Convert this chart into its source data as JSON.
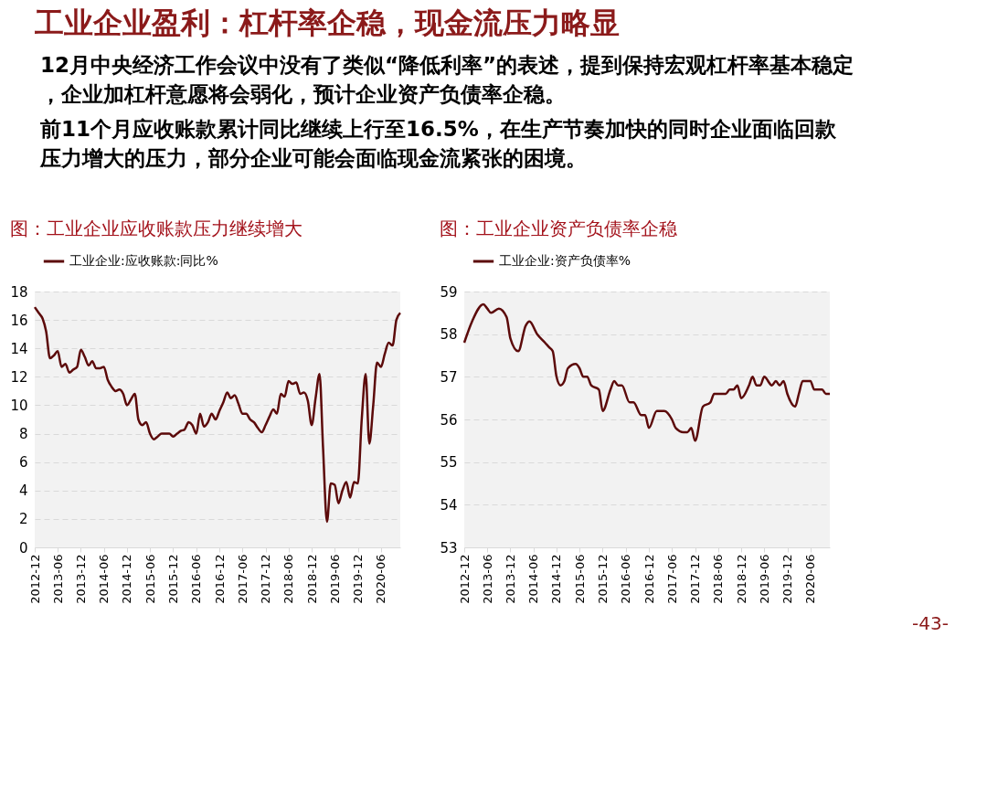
{
  "chart_data": [
    {
      "type": "other",
      "title": "工业企业盈利：杠杆率企稳，现金流压力略显",
      "annotations": [
        "12月中央经济工作会议中没有了类似“降低利率”的表述，提到保持宏观杠杆率基本稳定，企业加杠杆意愿将会弱化，预计企业资产负债率企稳。",
        "前11个月应收账款累计同比继续上行至16.5%，在生产节奏加快的同时企业面临回款压力增大的压力，部分企业可能会面临现金流紧张的困境。",
        "-43-"
      ]
    },
    {
      "type": "line",
      "title": "图：工业企业应收账款压力继续增大",
      "legend": "top",
      "grid": "y",
      "line_style": "solid",
      "xlim": [
        "2012-12",
        "2020-11"
      ],
      "ylim": [
        0,
        18
      ],
      "yticks": [
        0,
        2,
        4,
        6,
        8,
        10,
        12,
        14,
        16,
        18
      ],
      "xticks": [
        "2012-12",
        "2013-06",
        "2013-12",
        "2014-06",
        "2014-12",
        "2015-06",
        "2015-12",
        "2016-06",
        "2016-12",
        "2017-06",
        "2017-12",
        "2018-06",
        "2018-12",
        "2019-06",
        "2019-12",
        "2020-06"
      ],
      "series": [
        {
          "name": "工业企业:应收账款:同比%",
          "color": "#5c0a0a",
          "x": [
            "2012-12",
            "2013-01",
            "2013-02",
            "2013-03",
            "2013-04",
            "2013-05",
            "2013-06",
            "2013-07",
            "2013-08",
            "2013-09",
            "2013-10",
            "2013-11",
            "2013-12",
            "2014-01",
            "2014-02",
            "2014-03",
            "2014-04",
            "2014-05",
            "2014-06",
            "2014-07",
            "2014-08",
            "2014-09",
            "2014-10",
            "2014-11",
            "2014-12",
            "2015-01",
            "2015-02",
            "2015-03",
            "2015-04",
            "2015-05",
            "2015-06",
            "2015-07",
            "2015-08",
            "2015-09",
            "2015-10",
            "2015-11",
            "2015-12",
            "2016-01",
            "2016-02",
            "2016-03",
            "2016-04",
            "2016-05",
            "2016-06",
            "2016-07",
            "2016-08",
            "2016-09",
            "2016-10",
            "2016-11",
            "2016-12",
            "2017-01",
            "2017-02",
            "2017-03",
            "2017-04",
            "2017-05",
            "2017-06",
            "2017-07",
            "2017-08",
            "2017-09",
            "2017-10",
            "2017-11",
            "2017-12",
            "2018-01",
            "2018-02",
            "2018-03",
            "2018-04",
            "2018-05",
            "2018-06",
            "2018-07",
            "2018-08",
            "2018-09",
            "2018-10",
            "2018-11",
            "2018-12",
            "2019-01",
            "2019-02",
            "2019-03",
            "2019-04",
            "2019-05",
            "2019-06",
            "2019-07",
            "2019-08",
            "2019-09",
            "2019-10",
            "2019-11",
            "2019-12",
            "2020-01",
            "2020-02",
            "2020-03",
            "2020-04",
            "2020-05",
            "2020-06",
            "2020-07",
            "2020-08",
            "2020-09",
            "2020-10",
            "2020-11"
          ],
          "values": [
            16.9,
            16.5,
            16.1,
            15.2,
            13.3,
            13.5,
            13.8,
            12.7,
            12.9,
            12.3,
            12.5,
            12.7,
            13.9,
            13.4,
            12.8,
            13.1,
            12.6,
            12.6,
            12.7,
            11.8,
            11.3,
            11.0,
            11.1,
            10.8,
            10.0,
            10.4,
            10.8,
            9.0,
            8.6,
            8.8,
            8.0,
            7.6,
            7.8,
            8.0,
            8.0,
            8.0,
            7.8,
            8.0,
            8.2,
            8.3,
            8.8,
            8.6,
            8.0,
            9.4,
            8.5,
            8.8,
            9.4,
            9.0,
            9.6,
            10.2,
            10.9,
            10.5,
            10.7,
            10.1,
            9.4,
            9.4,
            9.0,
            8.8,
            8.4,
            8.1,
            8.6,
            9.2,
            9.7,
            9.4,
            10.8,
            10.6,
            11.7,
            11.5,
            11.6,
            10.8,
            10.9,
            10.3,
            8.6,
            10.5,
            12.2,
            7.0,
            1.8,
            4.5,
            4.4,
            3.1,
            4.0,
            4.6,
            3.5,
            4.6,
            4.5,
            9.0,
            12.2,
            7.3,
            10.0,
            13.0,
            12.7,
            13.6,
            14.4,
            14.2,
            16.0,
            16.5
          ]
        }
      ]
    },
    {
      "type": "line",
      "title": "图：工业企业资产负债率企稳",
      "legend": "top",
      "grid": "y",
      "line_style": "solid",
      "xlim": [
        "2012-12",
        "2020-11"
      ],
      "ylim": [
        53,
        59
      ],
      "yticks": [
        53,
        54,
        55,
        56,
        57,
        58,
        59
      ],
      "xticks": [
        "2012-12",
        "2013-06",
        "2013-12",
        "2014-06",
        "2014-12",
        "2015-06",
        "2015-12",
        "2016-06",
        "2016-12",
        "2017-06",
        "2017-12",
        "2018-06",
        "2018-12",
        "2019-06",
        "2019-12",
        "2020-06"
      ],
      "series": [
        {
          "name": "工业企业:资产负债率%",
          "color": "#5c0a0a",
          "x": [
            "2012-12",
            "2013-02",
            "2013-05",
            "2013-06",
            "2013-07",
            "2013-09",
            "2013-11",
            "2013-12",
            "2014-02",
            "2014-04",
            "2014-05",
            "2014-07",
            "2014-09",
            "2014-10",
            "2014-11",
            "2014-12",
            "2015-01",
            "2015-02",
            "2015-03",
            "2015-05",
            "2015-06",
            "2015-07",
            "2015-08",
            "2015-09",
            "2015-11",
            "2015-12",
            "2016-02",
            "2016-03",
            "2016-04",
            "2016-05",
            "2016-07",
            "2016-08",
            "2016-10",
            "2016-11",
            "2016-12",
            "2017-02",
            "2017-04",
            "2017-06",
            "2017-07",
            "2017-09",
            "2017-10",
            "2017-11",
            "2017-12",
            "2018-02",
            "2018-04",
            "2018-05",
            "2018-08",
            "2018-09",
            "2018-10",
            "2018-11",
            "2018-12",
            "2019-02",
            "2019-03",
            "2019-04",
            "2019-05",
            "2019-06",
            "2019-08",
            "2019-09",
            "2019-10",
            "2019-11",
            "2019-12",
            "2020-02",
            "2020-03",
            "2020-04",
            "2020-06",
            "2020-07",
            "2020-09",
            "2020-10",
            "2020-11"
          ],
          "values": [
            57.8,
            58.3,
            58.7,
            58.6,
            58.5,
            58.6,
            58.4,
            57.9,
            57.6,
            58.2,
            58.3,
            58.0,
            57.8,
            57.7,
            57.6,
            57.0,
            56.8,
            56.9,
            57.2,
            57.3,
            57.2,
            57.0,
            57.0,
            56.8,
            56.7,
            56.2,
            56.7,
            56.9,
            56.8,
            56.8,
            56.4,
            56.4,
            56.1,
            56.1,
            55.8,
            56.2,
            56.2,
            56.0,
            55.8,
            55.7,
            55.7,
            55.8,
            55.5,
            56.3,
            56.4,
            56.6,
            56.6,
            56.7,
            56.7,
            56.8,
            56.5,
            56.8,
            57.0,
            56.8,
            56.8,
            57.0,
            56.8,
            56.9,
            56.8,
            56.9,
            56.6,
            56.3,
            56.6,
            56.9,
            56.9,
            56.7,
            56.7,
            56.6,
            56.6
          ]
        }
      ]
    }
  ]
}
